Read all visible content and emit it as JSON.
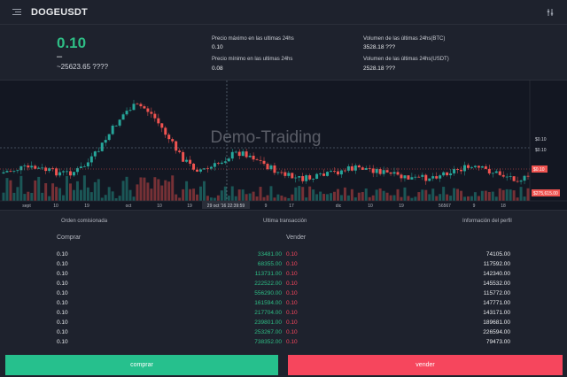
{
  "header": {
    "title": "DOGEUSDT",
    "settings_icon": "slider-settings-icon",
    "menu_icon": "menu-icon"
  },
  "summary": {
    "price": "0.10",
    "price_dash": "–",
    "price_sub": "~25623.65 ????",
    "high_label": "Precio máximo en las ultimas 24hs",
    "high_value": "0.10",
    "low_label": "Precio mínimo en las ultimas 24hs",
    "low_value": "0.08",
    "vol_btc_label": "Volumen de las últimas 24hs(BTC)",
    "vol_btc_value": "3528.18 ???",
    "vol_usdt_label": "Volumen de las últimas 24hs(USDT)",
    "vol_usdt_value": "2528.18 ???"
  },
  "chart": {
    "watermark": "Demo-Traiding",
    "price_labels": [
      "$0.10",
      "$0.10"
    ],
    "last_price_badge": "$0.10",
    "volume_badge": "$275,615.00",
    "crosshair_label": "29 oct '16   22:39:59",
    "x_labels": [
      "sept",
      "10",
      "19",
      "oct",
      "10",
      "19",
      "9",
      "17",
      "dic",
      "10",
      "19",
      "56567",
      "9",
      "18"
    ],
    "colors": {
      "up": "#26a69a",
      "down": "#ef5350",
      "background": "#131722"
    }
  },
  "tabs": {
    "orders": "Orden comisionada",
    "last_trade": "Ultima transacción",
    "profile": "Información del perfil"
  },
  "book": {
    "buy_header": "Comprar",
    "sell_header": "Vender",
    "rows": [
      {
        "buy_price": "0.10",
        "buy_amount": "33481.00",
        "sell_price": "0.10",
        "sell_amount": "74105.00"
      },
      {
        "buy_price": "0.10",
        "buy_amount": "68355.00",
        "sell_price": "0.10",
        "sell_amount": "117592.00"
      },
      {
        "buy_price": "0.10",
        "buy_amount": "113731.00",
        "sell_price": "0.10",
        "sell_amount": "142340.00"
      },
      {
        "buy_price": "0.10",
        "buy_amount": "222522.00",
        "sell_price": "0.10",
        "sell_amount": "145532.00"
      },
      {
        "buy_price": "0.10",
        "buy_amount": "556290.00",
        "sell_price": "0.10",
        "sell_amount": "115772.00"
      },
      {
        "buy_price": "0.10",
        "buy_amount": "161594.00",
        "sell_price": "0.10",
        "sell_amount": "147771.00"
      },
      {
        "buy_price": "0.10",
        "buy_amount": "217704.00",
        "sell_price": "0.10",
        "sell_amount": "143171.00"
      },
      {
        "buy_price": "0.10",
        "buy_amount": "239801.00",
        "sell_price": "0.10",
        "sell_amount": "189681.00"
      },
      {
        "buy_price": "0.10",
        "buy_amount": "253267.00",
        "sell_price": "0.10",
        "sell_amount": "226594.00"
      },
      {
        "buy_price": "0.10",
        "buy_amount": "738352.00",
        "sell_price": "0.10",
        "sell_amount": "79473.00"
      }
    ]
  },
  "actions": {
    "buy_label": "comprar",
    "sell_label": "vender"
  }
}
